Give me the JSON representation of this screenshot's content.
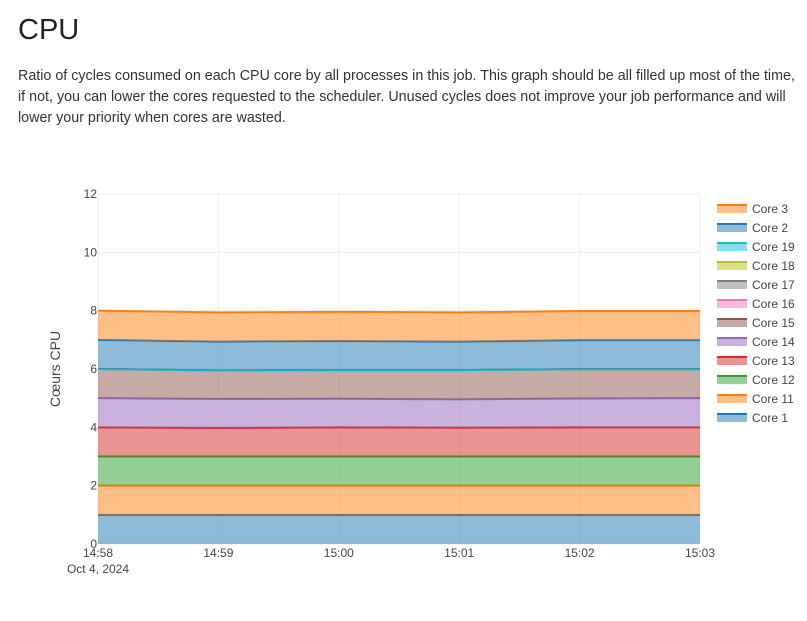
{
  "page": {
    "title": "CPU",
    "description": "Ratio of cycles consumed on each CPU core by all processes in this job. This graph should be all filled up most of the time, if not, you can lower the cores requested to the scheduler. Unused cycles does not improve your job performance and will lower your priority when cores are wasted."
  },
  "chart_data": {
    "type": "area",
    "stacked": true,
    "title": "",
    "xlabel": "",
    "ylabel": "Cœurs CPU",
    "x": [
      "14:58",
      "14:59",
      "15:00",
      "15:01",
      "15:02",
      "15:03"
    ],
    "x_date_label": "Oct 4, 2024",
    "ylim": [
      0,
      12
    ],
    "yticks": [
      0,
      2,
      4,
      6,
      8,
      10,
      12
    ],
    "grid": true,
    "legend_position": "right",
    "series": [
      {
        "name": "Core 1",
        "color": "#1f77b4",
        "values": [
          1.0,
          1.0,
          1.0,
          1.0,
          1.0,
          1.0
        ]
      },
      {
        "name": "Core 11",
        "color": "#ff7f0e",
        "values": [
          1.0,
          1.0,
          1.0,
          1.0,
          1.0,
          1.0
        ]
      },
      {
        "name": "Core 12",
        "color": "#2ca02c",
        "values": [
          1.0,
          1.0,
          1.0,
          1.0,
          1.0,
          1.0
        ]
      },
      {
        "name": "Core 13",
        "color": "#d62728",
        "values": [
          1.0,
          0.98,
          1.0,
          0.99,
          1.0,
          1.0
        ]
      },
      {
        "name": "Core 14",
        "color": "#9467bd",
        "values": [
          1.0,
          0.99,
          0.98,
          0.97,
          0.99,
          1.0
        ]
      },
      {
        "name": "Core 15",
        "color": "#8c564b",
        "values": [
          1.0,
          0.98,
          0.98,
          1.0,
          1.0,
          0.99
        ]
      },
      {
        "name": "Core 16",
        "color": "#e377c2",
        "values": [
          0.0,
          0.0,
          0.0,
          0.0,
          0.0,
          0.0
        ]
      },
      {
        "name": "Core 17",
        "color": "#7f7f7f",
        "values": [
          0.0,
          0.0,
          0.0,
          0.0,
          0.0,
          0.0
        ]
      },
      {
        "name": "Core 18",
        "color": "#bcbd22",
        "values": [
          0.0,
          0.0,
          0.0,
          0.0,
          0.0,
          0.0
        ]
      },
      {
        "name": "Core 19",
        "color": "#17becf",
        "values": [
          0.0,
          0.0,
          0.0,
          0.0,
          0.0,
          0.0
        ]
      },
      {
        "name": "Core 2",
        "color": "#1f77b4",
        "values": [
          1.0,
          0.99,
          1.0,
          0.98,
          1.0,
          1.0
        ]
      },
      {
        "name": "Core 3",
        "color": "#ff7f0e",
        "values": [
          1.0,
          1.0,
          1.0,
          1.0,
          1.0,
          1.0
        ]
      }
    ],
    "legend_order": [
      "Core 3",
      "Core 2",
      "Core 19",
      "Core 18",
      "Core 17",
      "Core 16",
      "Core 15",
      "Core 14",
      "Core 13",
      "Core 12",
      "Core 11",
      "Core 1"
    ]
  }
}
